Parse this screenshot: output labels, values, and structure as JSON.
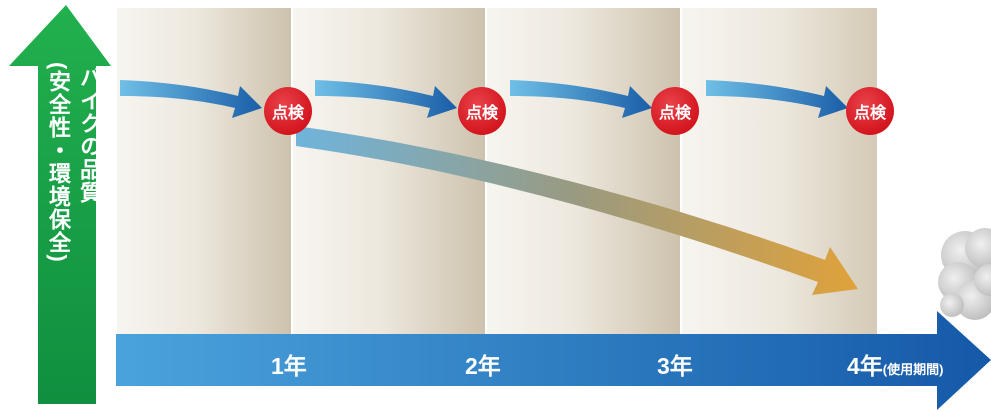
{
  "quality_axis": {
    "label_line1": "バイクの品質",
    "label_line2": "(安全性・環境保全)"
  },
  "inspections": [
    {
      "label": "点検"
    },
    {
      "label": "点検"
    },
    {
      "label": "点検"
    },
    {
      "label": "点検"
    }
  ],
  "time_axis": {
    "ticks": [
      "1年",
      "2年",
      "3年",
      "4年"
    ],
    "unit_label": "(使用期間)"
  },
  "colors": {
    "quality_arrow": "#16a24a",
    "time_arrow": "#1d6ab5",
    "inspection_badge": "#d4161f",
    "inspection_arrow": "#1f63a8",
    "degradation_arrow_start": "#6fb4dc",
    "degradation_arrow_end": "#e0a23a"
  },
  "icons": {
    "smoke": "smoke-cloud-icon"
  }
}
